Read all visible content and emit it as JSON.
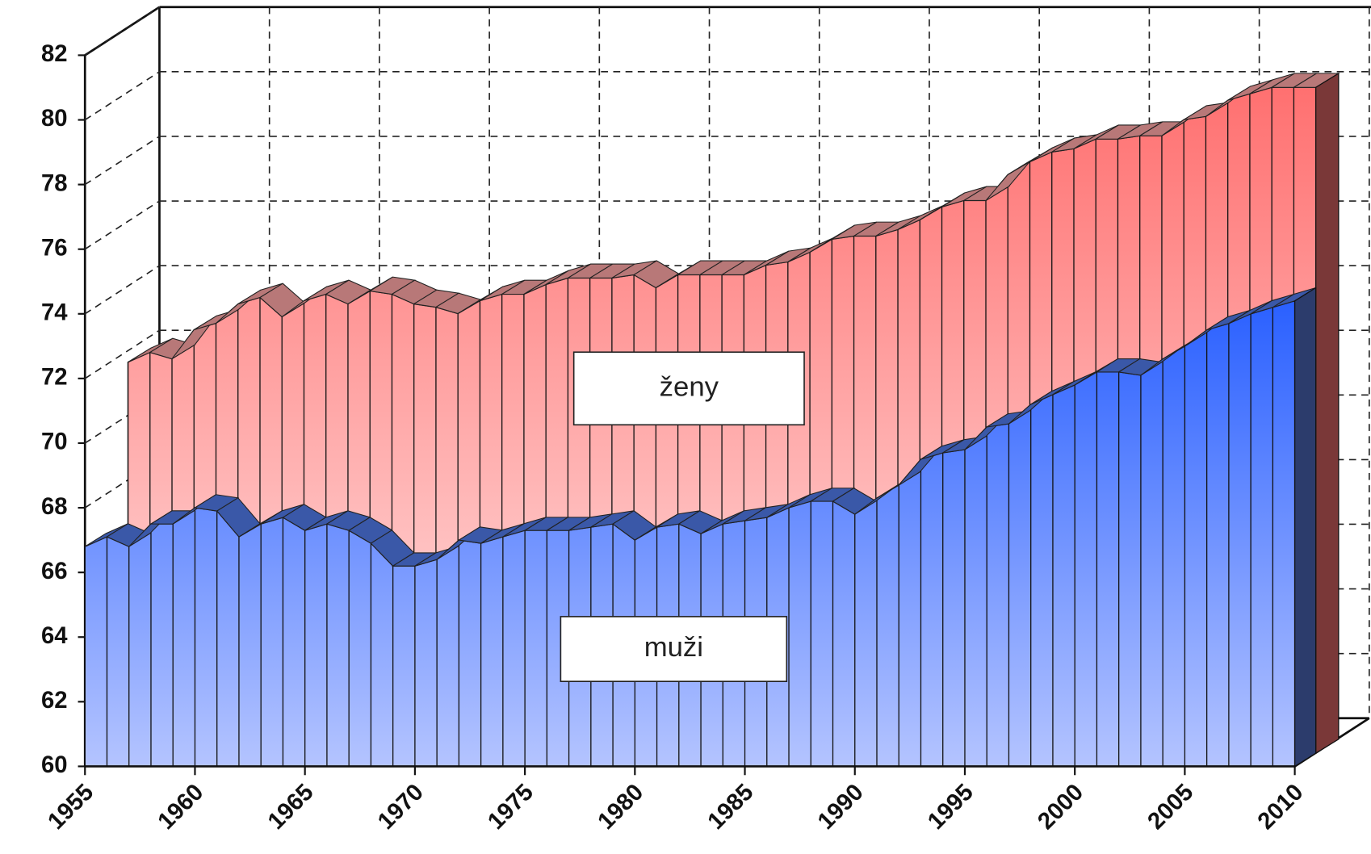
{
  "chart_data": {
    "type": "area3d",
    "x": [
      1955,
      1956,
      1957,
      1958,
      1959,
      1960,
      1961,
      1962,
      1963,
      1964,
      1965,
      1966,
      1967,
      1968,
      1969,
      1970,
      1971,
      1972,
      1973,
      1974,
      1975,
      1976,
      1977,
      1978,
      1979,
      1980,
      1981,
      1982,
      1983,
      1984,
      1985,
      1986,
      1987,
      1988,
      1989,
      1990,
      1991,
      1992,
      1993,
      1994,
      1995,
      1996,
      1997,
      1998,
      1999,
      2000,
      2001,
      2002,
      2003,
      2004,
      2005,
      2006,
      2007,
      2008,
      2009,
      2010
    ],
    "series": [
      {
        "name": "ženy",
        "color": "#ff7070",
        "values": [
          null,
          72.1,
          72.4,
          72.2,
          73.1,
          73.3,
          73.9,
          74.1,
          73.5,
          74.0,
          74.2,
          73.9,
          74.3,
          74.2,
          73.9,
          73.8,
          73.6,
          74.0,
          74.2,
          74.2,
          74.5,
          74.7,
          74.7,
          74.7,
          74.8,
          74.4,
          74.8,
          74.8,
          74.8,
          74.8,
          75.1,
          75.2,
          75.5,
          75.9,
          76.0,
          76.0,
          76.2,
          76.5,
          76.9,
          77.1,
          77.1,
          77.9,
          78.3,
          78.6,
          78.7,
          79.0,
          79.0,
          79.1,
          79.1,
          79.6,
          79.7,
          80.2,
          80.4,
          80.6,
          80.6,
          80.6
        ]
      },
      {
        "name": "muži",
        "color": "#3366ff",
        "values": [
          66.8,
          67.1,
          66.8,
          67.5,
          67.5,
          68.0,
          67.9,
          67.1,
          67.5,
          67.7,
          67.3,
          67.5,
          67.3,
          66.9,
          66.2,
          66.2,
          66.4,
          67.0,
          66.9,
          67.1,
          67.3,
          67.3,
          67.3,
          67.4,
          67.5,
          67.0,
          67.4,
          67.5,
          67.2,
          67.5,
          67.6,
          67.7,
          68.0,
          68.2,
          68.2,
          67.8,
          68.3,
          68.7,
          69.5,
          69.7,
          69.8,
          70.5,
          70.6,
          71.2,
          71.5,
          71.8,
          72.2,
          72.2,
          72.1,
          72.6,
          73.0,
          73.5,
          73.7,
          74.0,
          74.2,
          74.4
        ]
      }
    ],
    "xlim": [
      1955,
      2010
    ],
    "xticks": [
      1955,
      1960,
      1965,
      1970,
      1975,
      1980,
      1985,
      1990,
      1995,
      2000,
      2005,
      2010
    ],
    "ylim": [
      60,
      82
    ],
    "yticks": [
      60,
      62,
      64,
      66,
      68,
      70,
      72,
      74,
      76,
      78,
      80,
      82
    ],
    "grid": true
  }
}
